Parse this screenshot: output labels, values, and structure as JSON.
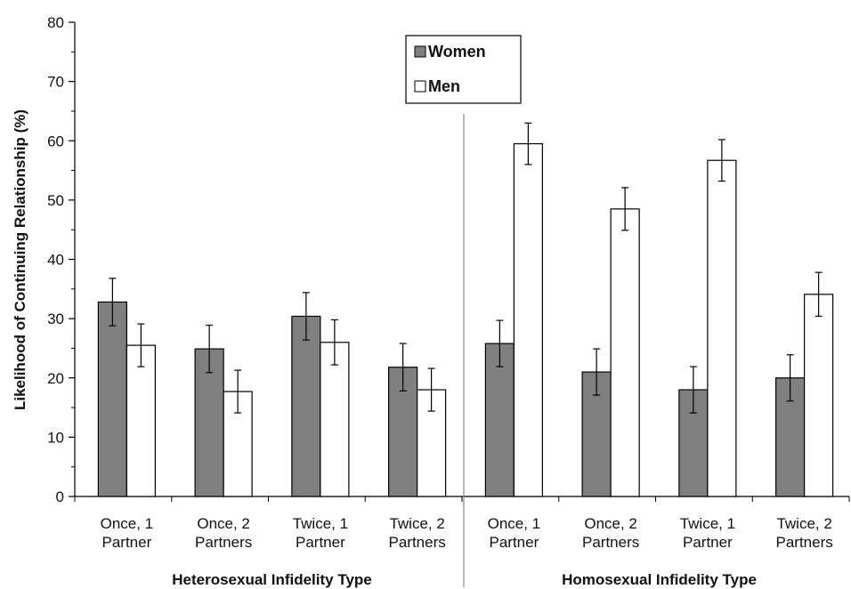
{
  "chart_data": {
    "type": "bar",
    "ylabel": "Likelihood of Continuing Relationship (%)",
    "xlabel": "",
    "ylim": [
      0,
      80
    ],
    "yticks": [
      0,
      10,
      20,
      30,
      40,
      50,
      60,
      70,
      80
    ],
    "legend_position": "top-center",
    "categories": [
      [
        "Once, 1",
        "Partner"
      ],
      [
        "Once, 2",
        "Partners"
      ],
      [
        "Twice, 1",
        "Partner"
      ],
      [
        "Twice, 2",
        "Partners"
      ],
      [
        "Once, 1",
        "Partner"
      ],
      [
        "Once, 2",
        "Partners"
      ],
      [
        "Twice, 1",
        "Partner"
      ],
      [
        "Twice, 2",
        "Partners"
      ]
    ],
    "groups": [
      {
        "label": "Heterosexual Infidelity Type",
        "categories": [
          0,
          1,
          2,
          3
        ]
      },
      {
        "label": "Homosexual Infidelity Type",
        "categories": [
          4,
          5,
          6,
          7
        ]
      }
    ],
    "series": [
      {
        "name": "Women",
        "color": "#808080",
        "values": [
          32.8,
          24.9,
          30.4,
          21.8,
          25.8,
          21.0,
          18.0,
          20.0
        ],
        "errors": [
          4.0,
          4.0,
          4.0,
          4.0,
          3.9,
          3.9,
          3.9,
          3.9
        ]
      },
      {
        "name": "Men",
        "color": "#ffffff",
        "values": [
          25.5,
          17.7,
          26.0,
          18.0,
          59.5,
          48.5,
          56.7,
          34.1
        ],
        "errors": [
          3.6,
          3.6,
          3.8,
          3.6,
          3.5,
          3.6,
          3.5,
          3.7
        ]
      }
    ]
  }
}
